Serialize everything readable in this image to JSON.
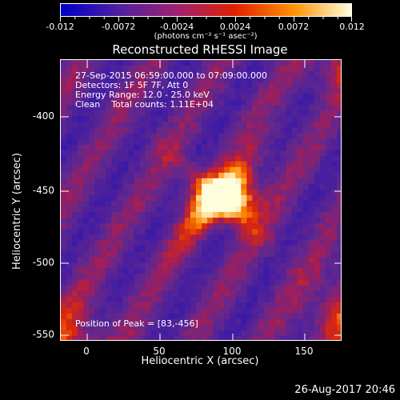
{
  "colorbar": {
    "tick_labels": [
      "-0.012",
      "-0.0072",
      "-0.0024",
      "0.0024",
      "0.0072",
      "0.012"
    ],
    "units": "(photons cm⁻² s⁻¹ asec⁻²)",
    "range": [
      -0.012,
      0.012
    ],
    "colors": [
      "#0000c8",
      "#5020a0",
      "#a02070",
      "#e02000",
      "#ff9000",
      "#ffffe0"
    ]
  },
  "title": "Reconstructed RHESSI Image",
  "annotations": {
    "time_range": "27-Sep-2015 06:59:00.000 to 07:09:00.000",
    "detectors": "Detectors: 1F 5F 7F, Att 0",
    "energy": "Energy Range: 12.0 - 25.0 keV",
    "clean": "Clean    Total counts: 1.11E+04",
    "peak": "Position of Peak = [83,-456]"
  },
  "axes": {
    "xlabel": "Heliocentric X (arcsec)",
    "ylabel": "Heliocentric Y (arcsec)",
    "xticks": [
      "0",
      "50",
      "100",
      "150"
    ],
    "yticks": [
      "-400",
      "-450",
      "-500",
      "-550"
    ]
  },
  "timestamp": "26-Aug-2017 20:46",
  "image": {
    "peak_x": 83,
    "peak_y": -456
  }
}
